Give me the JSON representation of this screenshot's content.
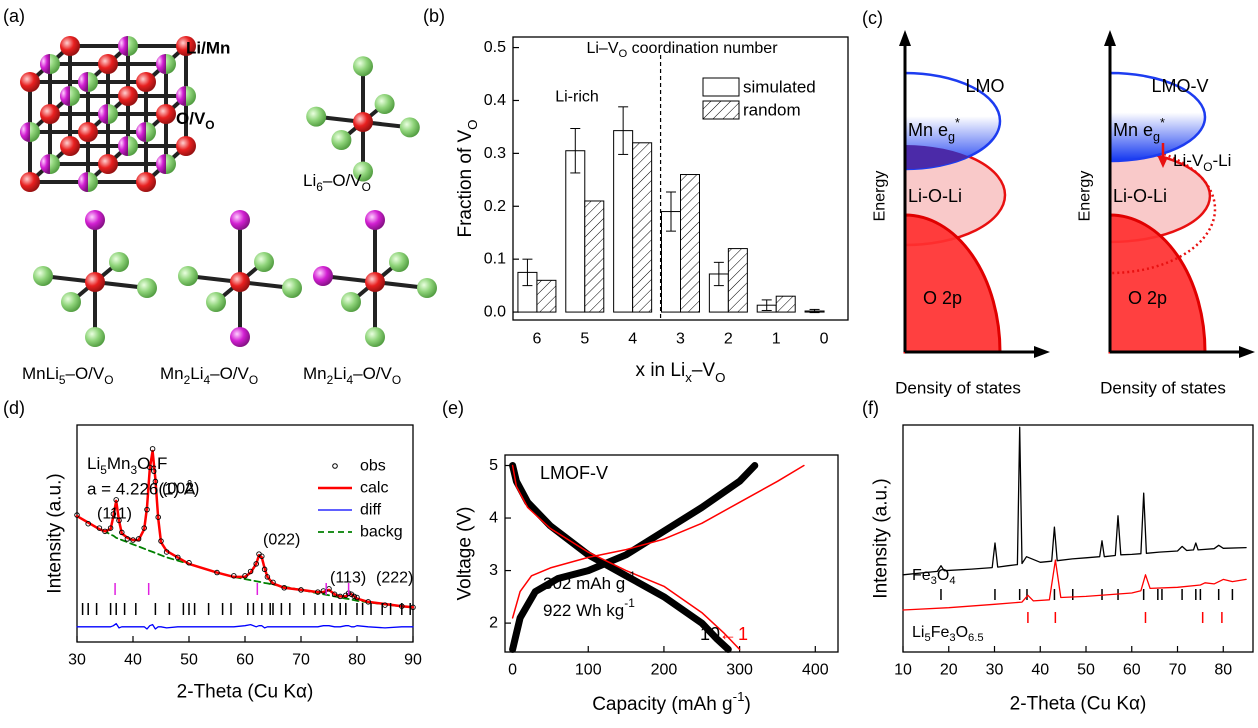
{
  "panel_labels": [
    "(a)",
    "(b)",
    "(c)",
    "(d)",
    "(e)",
    "(f)"
  ],
  "panel_a": {
    "site_labels": [
      "Li/Mn",
      [
        {
          "t": "O/V"
        },
        {
          "sub": "O"
        }
      ]
    ],
    "structure_labels": [
      [
        {
          "t": "Li"
        },
        {
          "sub": "6"
        },
        {
          "t": "–O/V"
        },
        {
          "sub": "O"
        }
      ],
      [
        {
          "t": "MnLi"
        },
        {
          "sub": "5"
        },
        {
          "t": "–O/V"
        },
        {
          "sub": "O"
        }
      ],
      [
        {
          "t": "Mn"
        },
        {
          "sub": "2"
        },
        {
          "t": "Li"
        },
        {
          "sub": "4"
        },
        {
          "t": "–O/V"
        },
        {
          "sub": "O"
        }
      ],
      [
        {
          "t": "Mn"
        },
        {
          "sub": "2"
        },
        {
          "t": "Li"
        },
        {
          "sub": "4"
        },
        {
          "t": "–O/V"
        },
        {
          "sub": "O"
        }
      ]
    ]
  },
  "panel_c": {
    "titles": [
      "LMO",
      "LMO-V"
    ],
    "band_labels": [
      [
        {
          "t": "Mn e"
        },
        {
          "sub": "g"
        },
        {
          "sup": "*"
        }
      ],
      "Li-O-Li",
      "O 2p"
    ],
    "y_label": "Energy",
    "x_label": "Density of states",
    "annotation": [
      {
        "t": "Li-V"
      },
      {
        "sub": "O"
      },
      {
        "t": "-Li"
      }
    ]
  },
  "chart_data": [
    {
      "type": "bar",
      "title": [
        {
          "t": "Li–V"
        },
        {
          "sub": "O"
        },
        {
          "t": " coordination number"
        }
      ],
      "annotation": "Li-rich",
      "xlabel": [
        {
          "t": "x in Li"
        },
        {
          "sub": "x"
        },
        {
          "t": "–V"
        },
        {
          "sub": "O"
        }
      ],
      "ylabel": [
        {
          "t": "Fraction of V"
        },
        {
          "sub": "O"
        }
      ],
      "categories": [
        "6",
        "5",
        "4",
        "3",
        "2",
        "1",
        "0"
      ],
      "series": [
        {
          "name": "simulated",
          "color": "#ffffff",
          "values": [
            0.075,
            0.305,
            0.343,
            0.19,
            0.072,
            0.013,
            0.002
          ],
          "errors": [
            0.025,
            0.042,
            0.045,
            0.037,
            0.022,
            0.01,
            0.003
          ]
        },
        {
          "name": "random",
          "color": "#ffffff",
          "hatch": true,
          "values": [
            0.06,
            0.21,
            0.32,
            0.26,
            0.12,
            0.03,
            0
          ]
        }
      ],
      "ylim": [
        -0.015,
        0.52
      ],
      "yticks": [
        {
          "value": 0,
          "label": "0.0"
        },
        {
          "value": 0.1,
          "label": "0.1"
        },
        {
          "value": 0.2,
          "label": "0.2"
        },
        {
          "value": 0.3,
          "label": "0.3"
        },
        {
          "value": 0.4,
          "label": "0.4"
        },
        {
          "value": 0.5,
          "label": "0.5"
        }
      ]
    },
    {
      "type": "line",
      "compound": [
        {
          "t": "Li"
        },
        {
          "sub": "5"
        },
        {
          "t": "Mn"
        },
        {
          "sub": "3"
        },
        {
          "t": "O"
        },
        {
          "sub": "6"
        },
        {
          "t": "F"
        }
      ],
      "lattice": "a = 4.226(1) Å",
      "peak_labels": [
        "(111)",
        "(002)",
        "(022)",
        "(113)",
        "(222)"
      ],
      "xlabel": "2-Theta (Cu Kα)",
      "ylabel": "Intensity (a.u.)",
      "x": [
        30,
        32,
        34,
        35,
        36,
        36.5,
        37,
        37.5,
        38,
        39,
        40,
        41,
        42,
        42.5,
        43,
        43.5,
        44,
        44.5,
        45,
        46,
        48,
        50,
        55,
        58,
        60,
        61,
        62,
        62.5,
        63,
        63.5,
        64,
        65,
        67,
        70,
        73,
        74,
        75,
        76,
        77,
        78,
        78.5,
        79,
        79.5,
        80,
        82,
        85,
        88,
        90
      ],
      "series": [
        {
          "name": "obs",
          "color": "#000000",
          "marker": true,
          "values": [
            58.5,
            54.5,
            52.5,
            51,
            52.5,
            59,
            65.5,
            56,
            50.5,
            47.5,
            47,
            47.5,
            52.5,
            61,
            80.5,
            89,
            74,
            57.5,
            46.5,
            41.5,
            39,
            36.5,
            32,
            30.5,
            30.5,
            32.5,
            36,
            40.5,
            39.5,
            33.5,
            30,
            27.5,
            25,
            24,
            23,
            23.5,
            24.5,
            22,
            21,
            21.5,
            22.5,
            22,
            21,
            20.5,
            18.5,
            17,
            16.5,
            16
          ]
        },
        {
          "name": "calc",
          "color": "#ff0000",
          "line_width": 2.5,
          "values": [
            58,
            55,
            52,
            51,
            52,
            58,
            65,
            56,
            50,
            48,
            47,
            47,
            52,
            62,
            80,
            88,
            75,
            57,
            46,
            42,
            39,
            36,
            32,
            30,
            30,
            32,
            36,
            40,
            39,
            34,
            30,
            27,
            25,
            24,
            23,
            23,
            24,
            22,
            21,
            21,
            22,
            22,
            21,
            20,
            18.5,
            17.5,
            16.5,
            16
          ]
        },
        {
          "name": "diff",
          "color": "#0000ff",
          "line_width": 1.3,
          "values": [
            7,
            7,
            7,
            7,
            7,
            7.5,
            8.5,
            6.5,
            7,
            7,
            7,
            7,
            7,
            6,
            7.5,
            8,
            6,
            7,
            7,
            6.5,
            7,
            7,
            7,
            7,
            7.5,
            8,
            7,
            7.5,
            7.5,
            6.5,
            7,
            7,
            7,
            7,
            7,
            7.5,
            7.5,
            7,
            7,
            7.5,
            7.5,
            7,
            7,
            7.5,
            7,
            6.5,
            7,
            7
          ]
        },
        {
          "name": "backg",
          "color": "#008000",
          "dash": true,
          "line_width": 1.8,
          "values": [
            58,
            55,
            52,
            51,
            49.5,
            49,
            48,
            47.5,
            47,
            46,
            45,
            44,
            43,
            42.5,
            42,
            41.5,
            41,
            40.5,
            40,
            39,
            37.5,
            36,
            32,
            30,
            29,
            28.5,
            28,
            27.8,
            27.5,
            27.2,
            27,
            26.5,
            25.5,
            24,
            22.5,
            22,
            21.5,
            21,
            20.5,
            20,
            19.8,
            19.5,
            19.3,
            19,
            18.3,
            17.3,
            16.4,
            16
          ]
        }
      ],
      "reflections": [
        {
          "color": "#e020e0",
          "x": [
            36.8,
            42.8,
            62.2,
            74.5,
            78.5
          ]
        },
        {
          "color": "#000000",
          "x": [
            31,
            32,
            33.5,
            36,
            37,
            38.5,
            40.5,
            44,
            46.5,
            49,
            50,
            51,
            53.5,
            56,
            57.5,
            60.5,
            61.5,
            63,
            64.5,
            65,
            66.5,
            68,
            70.5,
            72.5,
            74,
            75.5,
            77,
            78,
            80,
            81,
            82.5,
            84.5,
            86,
            88,
            89.5
          ]
        }
      ],
      "xlim": [
        30,
        90
      ],
      "xticks": [
        30,
        40,
        50,
        60,
        70,
        80,
        90
      ],
      "ylim": [
        0,
        100
      ]
    },
    {
      "type": "line",
      "sample": "LMOF-V",
      "capacity": [
        {
          "t": "302 mAh g"
        },
        {
          "sup": "-1"
        }
      ],
      "energy": [
        {
          "t": "922 Wh kg"
        },
        {
          "sup": "-1"
        }
      ],
      "arrow": "←",
      "xlabel": [
        {
          "t": "Capacity (mAh g"
        },
        {
          "sup": "-1"
        },
        {
          "t": ")"
        }
      ],
      "ylabel": "Voltage (V)",
      "series": [
        {
          "name": "10",
          "color": "#000000",
          "line_width": 7,
          "x": [
            0,
            10,
            30,
            60,
            100,
            150,
            200,
            250,
            300,
            320,
            null,
            0,
            5,
            20,
            50,
            100,
            150,
            200,
            250,
            270,
            285
          ],
          "values": [
            1.5,
            2.1,
            2.6,
            2.85,
            3.0,
            3.3,
            3.75,
            4.2,
            4.7,
            5.0,
            null,
            5.0,
            4.7,
            4.3,
            3.85,
            3.3,
            2.9,
            2.5,
            2.0,
            1.7,
            1.5
          ]
        },
        {
          "name": "1",
          "color": "#ff0000",
          "line_width": 1.5,
          "x": [
            0,
            10,
            25,
            50,
            100,
            150,
            200,
            250,
            300,
            350,
            385,
            null,
            0,
            5,
            20,
            50,
            100,
            150,
            200,
            250,
            280,
            300
          ],
          "values": [
            2.1,
            2.6,
            2.9,
            3.05,
            3.25,
            3.4,
            3.6,
            3.9,
            4.3,
            4.7,
            5.0,
            null,
            5.0,
            4.6,
            4.2,
            3.8,
            3.35,
            3.0,
            2.7,
            2.2,
            1.8,
            1.5
          ]
        }
      ],
      "xlim": [
        -10,
        430
      ],
      "xticks": [
        0,
        100,
        200,
        300,
        400
      ],
      "ylim": [
        1.45,
        5.2
      ],
      "yticks": [
        2,
        3,
        4,
        5
      ]
    },
    {
      "type": "line",
      "xlabel": "2-Theta (Cu Kα)",
      "ylabel": "Intensity (a.u.)",
      "series": [
        {
          "name": [
            {
              "t": "Fe"
            },
            {
              "sub": "3"
            },
            {
              "t": "O"
            },
            {
              "sub": "4"
            }
          ],
          "color": "#000000",
          "line_width": 1.3,
          "x": [
            10,
            15,
            17.5,
            18.3,
            19,
            25,
            29.5,
            30.1,
            30.7,
            33,
            35,
            35.5,
            36,
            37,
            40,
            42.5,
            43.1,
            43.7,
            47,
            50,
            53,
            53.5,
            54,
            56.4,
            57,
            57.6,
            60,
            62,
            62.6,
            63.2,
            66,
            70,
            71,
            72,
            73.5,
            74,
            74.5,
            78,
            79,
            80,
            85
          ],
          "values": [
            34,
            35,
            35.5,
            38,
            35.8,
            36.5,
            37.2,
            48,
            37.4,
            38,
            38.5,
            99,
            39,
            42,
            39.5,
            40,
            55,
            40.2,
            41,
            41.5,
            42,
            49,
            42,
            42.5,
            60,
            42.8,
            43,
            43.3,
            70,
            43.5,
            44,
            44.5,
            46.5,
            44.7,
            45,
            48,
            45,
            45.5,
            47,
            45.7,
            46
          ],
          "ticks": [
            18.3,
            30.1,
            35.5,
            37.1,
            43.1,
            47.1,
            53.5,
            57,
            62.6,
            65.7,
            66.6,
            71,
            74,
            75,
            79,
            82
          ]
        },
        {
          "name": [
            {
              "t": "Li"
            },
            {
              "sub": "5"
            },
            {
              "t": "Fe"
            },
            {
              "sub": "3"
            },
            {
              "t": "O"
            },
            {
              "sub": "6.5"
            }
          ],
          "color": "#ff0000",
          "line_width": 1.3,
          "x": [
            10,
            20,
            30,
            36,
            37.3,
            38.5,
            42,
            43.3,
            44.5,
            50,
            60,
            62,
            63,
            64,
            70,
            75,
            76,
            78,
            80,
            82,
            85
          ],
          "values": [
            18.5,
            19.5,
            21,
            22,
            25,
            22.5,
            23,
            40.5,
            24,
            24.5,
            26,
            27,
            34,
            28,
            28.5,
            29.5,
            30.5,
            30,
            32,
            31,
            32
          ],
          "ticks": [
            37.3,
            43.3,
            63,
            75.5,
            79.7
          ]
        }
      ],
      "xlim": [
        10,
        86.5
      ],
      "xticks": [
        10,
        20,
        30,
        40,
        50,
        60,
        70,
        80
      ],
      "ylim": [
        0,
        100
      ]
    }
  ]
}
